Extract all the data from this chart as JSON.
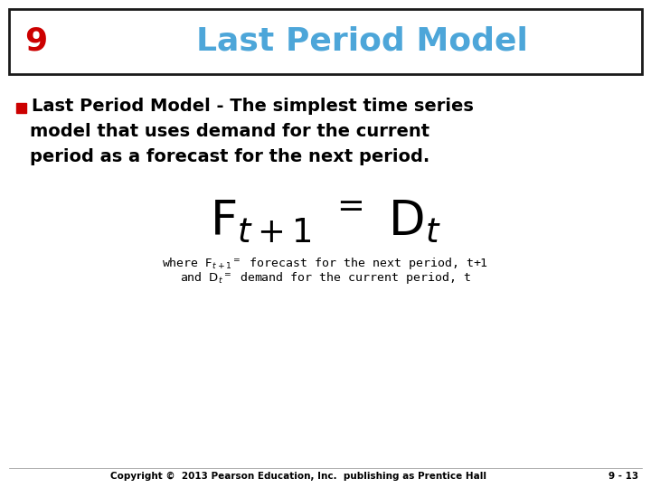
{
  "slide_number": "9",
  "title": "Last Period Model",
  "slide_number_color": "#CC0000",
  "title_color": "#4DA6D9",
  "background_color": "#FFFFFF",
  "header_border_color": "#1A1A1A",
  "bullet_color": "#CC0000",
  "bullet_text_line1": "Last Period Model - The simplest time series",
  "bullet_text_line2": "model that uses demand for the current",
  "bullet_text_line3": "period as a forecast for the next period.",
  "copyright_text": "Copyright ©  2013 Pearson Education, Inc.  publishing as Prentice Hall",
  "page_number": "9 - 13",
  "text_color": "#000000",
  "footer_color": "#000000"
}
